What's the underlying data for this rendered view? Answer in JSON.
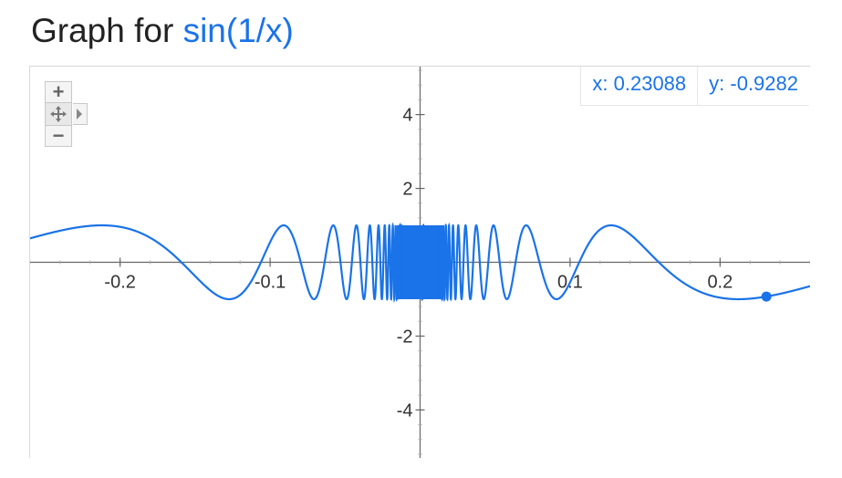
{
  "header": {
    "title_prefix": "Graph for ",
    "function_text": "sin(1/x)"
  },
  "readout": {
    "x_text": "x: 0.23088",
    "y_text": "y: -0.9282"
  },
  "controls": {
    "zoom_in_icon": "plus-icon",
    "pan_icon": "move-icon",
    "zoom_out_icon": "minus-icon"
  },
  "colors": {
    "curve": "#1a73e8",
    "axis": "#666666"
  },
  "chart_data": {
    "type": "line",
    "function": "sin(1/x)",
    "title": "",
    "xlabel": "",
    "ylabel": "",
    "xlim": [
      -0.26,
      0.26
    ],
    "ylim": [
      -5.3,
      5.3
    ],
    "x_ticks": [
      -0.2,
      -0.1,
      0.1,
      0.2
    ],
    "x_tick_labels": [
      "-0.2",
      "-0.1",
      "0.1",
      "0.2"
    ],
    "y_ticks": [
      4,
      2,
      -2,
      -4
    ],
    "y_tick_labels": [
      "4",
      "2",
      "-2",
      "-4"
    ],
    "grid": false,
    "highlight_point": {
      "x": 0.23088,
      "y": -0.9282
    }
  }
}
